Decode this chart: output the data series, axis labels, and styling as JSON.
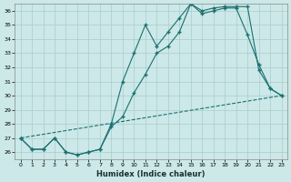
{
  "xlabel": "Humidex (Indice chaleur)",
  "ylabel": "",
  "xlim": [
    -0.5,
    23.5
  ],
  "ylim": [
    25.5,
    36.5
  ],
  "xticks": [
    0,
    1,
    2,
    3,
    4,
    5,
    6,
    7,
    8,
    9,
    10,
    11,
    12,
    13,
    14,
    15,
    16,
    17,
    18,
    19,
    20,
    21,
    22,
    23
  ],
  "yticks": [
    26,
    27,
    28,
    29,
    30,
    31,
    32,
    33,
    34,
    35,
    36
  ],
  "background_color": "#cce8e8",
  "grid_color": "#aacccc",
  "line_color": "#1a7070",
  "line1_x": [
    0,
    1,
    2,
    3,
    4,
    5,
    6,
    7,
    8,
    9,
    10,
    11,
    12,
    13,
    14,
    15,
    16,
    17,
    18,
    19,
    20,
    21,
    22,
    23
  ],
  "line1_y": [
    27.0,
    26.2,
    26.2,
    27.0,
    26.0,
    25.8,
    26.0,
    26.2,
    28.0,
    31.0,
    33.0,
    35.0,
    33.5,
    34.5,
    35.5,
    36.5,
    36.0,
    36.2,
    36.3,
    36.3,
    36.3,
    31.8,
    30.5,
    30.0
  ],
  "line2_x": [
    0,
    1,
    2,
    3,
    4,
    5,
    6,
    7,
    8,
    9,
    10,
    11,
    12,
    13,
    14,
    15,
    16,
    17,
    18,
    19,
    20,
    21,
    22,
    23
  ],
  "line2_y": [
    27.0,
    26.2,
    26.2,
    27.0,
    26.0,
    25.8,
    26.0,
    26.2,
    27.8,
    28.5,
    30.2,
    31.5,
    33.0,
    33.5,
    34.5,
    36.5,
    35.8,
    36.0,
    36.2,
    36.2,
    34.3,
    32.2,
    30.5,
    30.0
  ],
  "line3_x": [
    0,
    23
  ],
  "line3_y": [
    27.0,
    30.0
  ]
}
